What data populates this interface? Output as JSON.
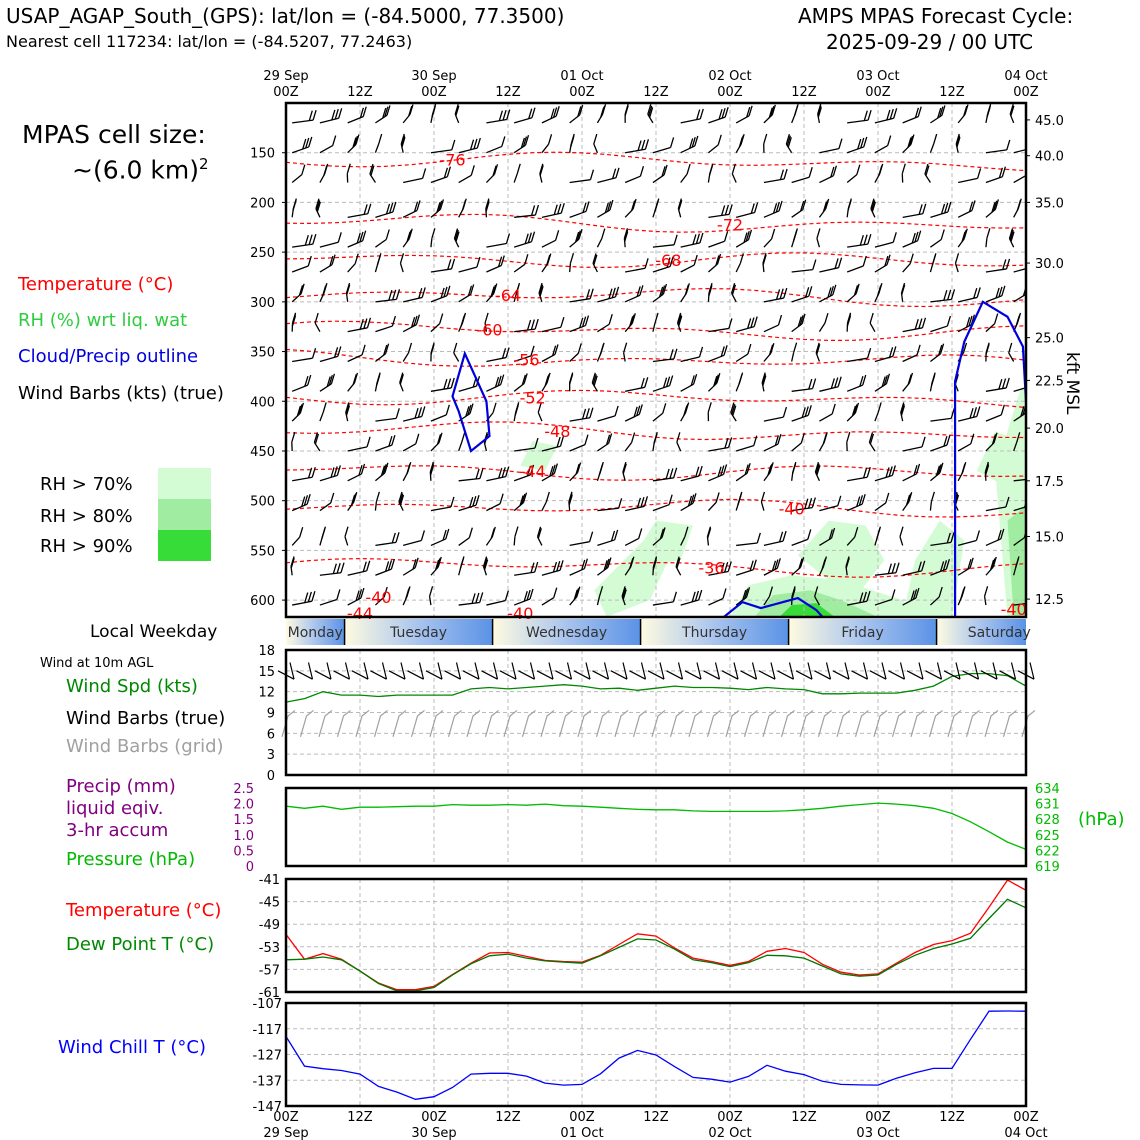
{
  "header": {
    "station_title": "USAP_AGAP_South_(GPS): lat/lon = (-84.5000, 77.3500)",
    "nearest_cell": "Nearest cell 117234: lat/lon = (-84.5207, 77.2463)",
    "cycle_title": "AMPS MPAS Forecast Cycle:",
    "cycle_time": "2025-09-29 / 00 UTC"
  },
  "cell_size": {
    "line1": "MPAS cell size:",
    "line2": "~(6.0 km)",
    "exponent": "2"
  },
  "legend": {
    "temperature": "Temperature (°C)",
    "rh": "RH (%) wrt liq. wat",
    "cloud": "Cloud/Precip outline",
    "wind_barbs": "Wind Barbs (kts) (true)",
    "rh70": "RH > 70%",
    "rh80": "RH > 80%",
    "rh90": "RH > 90%",
    "local_weekday": "Local Weekday",
    "wind10m": "Wind at 10m AGL",
    "wind_spd": "Wind Spd (kts)",
    "wind_barbs_true": "Wind Barbs (true)",
    "wind_barbs_grid": "Wind Barbs (grid)",
    "precip1": "Precip (mm)",
    "precip2": "liquid eqiv.",
    "precip3": "3-hr accum",
    "pressure": "Pressure (hPa)",
    "pressure_unit": "(hPa)",
    "temp2": "Temperature (°C)",
    "dewpoint": "Dew Point T (°C)",
    "windchill": "Wind Chill T (°C)",
    "kft_msl": "kft MSL"
  },
  "colors": {
    "temperature": "#ff0000",
    "rh": "#2ecc40",
    "cloud": "#0000dd",
    "barb": "#000000",
    "barb_grid": "#a0a0a0",
    "precip": "#800080",
    "pressure": "#00bb00",
    "dewpoint": "#007700",
    "windchill": "#0000ff",
    "rh70": "#d4fcd4",
    "rh80": "#a0eca0",
    "rh90": "#38dc38"
  },
  "chart_data": [
    {
      "type": "heatmap",
      "name": "vertical-profile",
      "x_ticks_top": [
        {
          "hours": 0,
          "l1": "29 Sep",
          "l2": "00Z"
        },
        {
          "hours": 12,
          "l1": "",
          "l2": "12Z"
        },
        {
          "hours": 24,
          "l1": "30 Sep",
          "l2": "00Z"
        },
        {
          "hours": 36,
          "l1": "",
          "l2": "12Z"
        },
        {
          "hours": 48,
          "l1": "01 Oct",
          "l2": "00Z"
        },
        {
          "hours": 60,
          "l1": "",
          "l2": "12Z"
        },
        {
          "hours": 72,
          "l1": "02 Oct",
          "l2": "00Z"
        },
        {
          "hours": 84,
          "l1": "",
          "l2": "12Z"
        },
        {
          "hours": 96,
          "l1": "03 Oct",
          "l2": "00Z"
        },
        {
          "hours": 108,
          "l1": "",
          "l2": "12Z"
        },
        {
          "hours": 120,
          "l1": "04 Oct",
          "l2": "00Z"
        }
      ],
      "pressure_ticks": [
        150,
        200,
        250,
        300,
        350,
        400,
        450,
        500,
        550,
        600
      ],
      "kft_ticks": [
        {
          "p": 117,
          "label": "45.0"
        },
        {
          "p": 153,
          "label": "40.0"
        },
        {
          "p": 200,
          "label": "35.0"
        },
        {
          "p": 261,
          "label": "30.0"
        },
        {
          "p": 336,
          "label": "25.0"
        },
        {
          "p": 379,
          "label": "22.5"
        },
        {
          "p": 427,
          "label": "20.0"
        },
        {
          "p": 480,
          "label": "17.5"
        },
        {
          "p": 536,
          "label": "15.0"
        },
        {
          "p": 599,
          "label": "12.5"
        }
      ],
      "ylim_hpa": [
        100,
        617
      ],
      "temperature_contours": [
        {
          "label": "-76",
          "hours": 27,
          "p": 157
        },
        {
          "label": "-72",
          "hours": 72,
          "p": 222
        },
        {
          "label": "-68",
          "hours": 62,
          "p": 258
        },
        {
          "label": "-64",
          "hours": 36,
          "p": 293
        },
        {
          "label": "-60",
          "hours": 33,
          "p": 328
        },
        {
          "label": "-56",
          "hours": 39,
          "p": 358
        },
        {
          "label": "-52",
          "hours": 40,
          "p": 396
        },
        {
          "label": "-48",
          "hours": 44,
          "p": 430
        },
        {
          "label": "-44",
          "hours": 40,
          "p": 470
        },
        {
          "label": "-40",
          "hours": 82,
          "p": 508
        },
        {
          "label": "-36",
          "hours": 69,
          "p": 567
        },
        {
          "label": "-40",
          "hours": 15,
          "p": 597
        },
        {
          "label": "-44",
          "hours": 12,
          "p": 613
        },
        {
          "label": "-40",
          "hours": 38,
          "p": 613
        },
        {
          "label": "-40",
          "hours": 118,
          "p": 609
        }
      ]
    },
    {
      "type": "table",
      "name": "local-weekday",
      "days": [
        {
          "label": "Monday",
          "start": 0,
          "end": 9.5
        },
        {
          "label": "Tuesday",
          "start": 9.5,
          "end": 33.5
        },
        {
          "label": "Wednesday",
          "start": 33.5,
          "end": 57.5
        },
        {
          "label": "Thursday",
          "start": 57.5,
          "end": 81.5
        },
        {
          "label": "Friday",
          "start": 81.5,
          "end": 105.5
        },
        {
          "label": "Saturday",
          "start": 105.5,
          "end": 120
        }
      ]
    },
    {
      "type": "line",
      "name": "wind-speed",
      "ylim": [
        0,
        18
      ],
      "yticks": [
        0,
        3,
        6,
        9,
        12,
        15,
        18
      ],
      "x_hours": [
        0,
        3,
        6,
        9,
        12,
        15,
        18,
        21,
        24,
        27,
        30,
        33,
        36,
        39,
        42,
        45,
        48,
        51,
        54,
        57,
        60,
        63,
        66,
        69,
        72,
        75,
        78,
        81,
        84,
        87,
        90,
        93,
        96,
        99,
        102,
        105,
        108,
        111,
        114,
        117,
        120
      ],
      "series": [
        {
          "values": [
            10.5,
            11,
            12,
            11.5,
            11.5,
            11.3,
            11.5,
            11.5,
            11.5,
            11.5,
            12.4,
            12.6,
            12.4,
            12.6,
            12.8,
            13,
            12.8,
            12.4,
            12.5,
            12.2,
            12.5,
            12.8,
            12.6,
            12.6,
            12.5,
            12.3,
            12.6,
            12.4,
            12.3,
            11.7,
            11.7,
            11.8,
            11.8,
            11.8,
            12.2,
            12.8,
            14.2,
            14.6,
            14.6,
            14.3,
            12.8
          ]
        }
      ]
    },
    {
      "type": "line",
      "name": "pressure",
      "y_left_ticks": [
        0,
        0.5,
        1.0,
        1.5,
        2.0,
        2.5
      ],
      "y_left_ticks_text": [
        "0",
        "0.5",
        "1.0",
        "1.5",
        "2.0",
        "2.5"
      ],
      "y_right_ticks": [
        619,
        622,
        625,
        628,
        631,
        634
      ],
      "ylim_right": [
        619,
        634
      ],
      "x_hours": [
        0,
        3,
        6,
        9,
        12,
        15,
        18,
        21,
        24,
        27,
        30,
        33,
        36,
        39,
        42,
        45,
        48,
        51,
        54,
        57,
        60,
        63,
        66,
        69,
        72,
        75,
        78,
        81,
        84,
        87,
        90,
        93,
        96,
        99,
        102,
        105,
        108,
        111,
        114,
        117,
        120
      ],
      "series": [
        {
          "values": [
            630.5,
            630.1,
            630.5,
            629.9,
            630.3,
            630.3,
            630.4,
            630.5,
            630.5,
            630.8,
            630.7,
            630.7,
            630.8,
            630.7,
            630.9,
            630.6,
            630.5,
            630.3,
            630.1,
            629.9,
            629.8,
            629.8,
            629.6,
            629.5,
            629.5,
            629.5,
            629.5,
            629.6,
            629.8,
            630.1,
            630.5,
            630.8,
            631.1,
            630.9,
            630.6,
            630.1,
            629.1,
            627.5,
            625.6,
            623.6,
            622.2
          ]
        }
      ]
    },
    {
      "type": "line",
      "name": "temperature-dewpoint",
      "ylim": [
        -61,
        -41
      ],
      "yticks": [
        -61,
        -57,
        -53,
        -49,
        -45,
        -41
      ],
      "x_hours": [
        0,
        3,
        6,
        9,
        12,
        15,
        18,
        21,
        24,
        27,
        30,
        33,
        36,
        39,
        42,
        45,
        48,
        51,
        54,
        57,
        60,
        63,
        66,
        69,
        72,
        75,
        78,
        81,
        84,
        87,
        90,
        93,
        96,
        99,
        102,
        105,
        108,
        111,
        114,
        117,
        120
      ],
      "series": [
        {
          "name": "Temperature (°C)",
          "values": [
            -50.8,
            -55.2,
            -54.2,
            -55.2,
            -57.3,
            -59.4,
            -60.6,
            -60.6,
            -60.0,
            -57.9,
            -55.9,
            -54.1,
            -54.0,
            -54.7,
            -55.4,
            -55.6,
            -55.7,
            -54.5,
            -52.6,
            -50.7,
            -51.1,
            -53.2,
            -55.0,
            -55.6,
            -56.3,
            -55.6,
            -53.8,
            -53.3,
            -54.0,
            -56.1,
            -57.5,
            -58.0,
            -57.8,
            -55.9,
            -54.0,
            -52.6,
            -51.9,
            -50.6,
            -46.0,
            -41.2,
            -43.0
          ]
        },
        {
          "name": "Dew Point T (°C)",
          "values": [
            -55.3,
            -55.2,
            -54.8,
            -55.3,
            -57.3,
            -59.5,
            -60.8,
            -60.8,
            -60.2,
            -58.0,
            -56.0,
            -54.6,
            -54.3,
            -55.0,
            -55.5,
            -55.7,
            -55.9,
            -54.6,
            -53.1,
            -51.6,
            -51.8,
            -53.4,
            -55.3,
            -55.8,
            -56.5,
            -55.8,
            -54.5,
            -54.6,
            -55.0,
            -56.4,
            -57.8,
            -58.2,
            -58.0,
            -56.1,
            -54.5,
            -53.3,
            -52.5,
            -51.5,
            -48.0,
            -44.6,
            -46.1
          ]
        }
      ]
    },
    {
      "type": "line",
      "name": "wind-chill",
      "ylim": [
        -147,
        -107
      ],
      "yticks": [
        -147,
        -137,
        -127,
        -117,
        -107
      ],
      "x_hours": [
        0,
        3,
        6,
        9,
        12,
        15,
        18,
        21,
        24,
        27,
        30,
        33,
        36,
        39,
        42,
        45,
        48,
        51,
        54,
        57,
        60,
        63,
        66,
        69,
        72,
        75,
        78,
        81,
        84,
        87,
        90,
        93,
        96,
        99,
        102,
        105,
        108,
        111,
        114,
        117,
        120
      ],
      "series": [
        {
          "name": "Wind Chill T (°C)",
          "values": [
            -120,
            -131.5,
            -132.5,
            -133.2,
            -134.6,
            -139.4,
            -141.6,
            -144.4,
            -143.4,
            -139.8,
            -134.6,
            -134.3,
            -134.3,
            -135.4,
            -138.1,
            -138.9,
            -138.6,
            -134.5,
            -128.4,
            -125.4,
            -127.2,
            -131.7,
            -135.9,
            -136.6,
            -137.7,
            -135.5,
            -131.2,
            -133.5,
            -134.8,
            -137.4,
            -138.6,
            -138.8,
            -138.9,
            -136.2,
            -134.1,
            -132.4,
            -132.4,
            -121.1,
            -110.2,
            -110.1,
            -110.2
          ]
        }
      ]
    }
  ],
  "bottom_axis": {
    "ticks": [
      {
        "l1": "00Z",
        "l2": "29 Sep"
      },
      {
        "l1": "12Z",
        "l2": ""
      },
      {
        "l1": "00Z",
        "l2": "30 Sep"
      },
      {
        "l1": "12Z",
        "l2": ""
      },
      {
        "l1": "00Z",
        "l2": "01 Oct"
      },
      {
        "l1": "12Z",
        "l2": ""
      },
      {
        "l1": "00Z",
        "l2": "02 Oct"
      },
      {
        "l1": "12Z",
        "l2": ""
      },
      {
        "l1": "00Z",
        "l2": "03 Oct"
      },
      {
        "l1": "12Z",
        "l2": ""
      },
      {
        "l1": "00Z",
        "l2": "04 Oct"
      }
    ]
  }
}
